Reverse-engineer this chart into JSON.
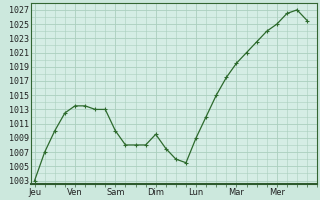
{
  "x_values": [
    0,
    0.5,
    1,
    1.5,
    2,
    2.5,
    3,
    3.5,
    4,
    4.5,
    5,
    5.5,
    6,
    6.5,
    7,
    7.5,
    8,
    8.5,
    9,
    9.5,
    10,
    10.5,
    11,
    11.5,
    12,
    12.5,
    13,
    13.5
  ],
  "y_values": [
    1003,
    1007,
    1010,
    1012.5,
    1013.5,
    1013.5,
    1013,
    1013,
    1010,
    1008,
    1008,
    1008,
    1009.5,
    1007.5,
    1006,
    1005.5,
    1009,
    1012,
    1015,
    1017.5,
    1019.5,
    1021,
    1022.5,
    1024,
    1025,
    1026.5,
    1027,
    1025.5
  ],
  "day_positions": [
    0,
    2,
    4,
    6,
    8,
    10,
    12
  ],
  "day_labels": [
    "Jeu",
    "Ven",
    "Sam",
    "Dim",
    "Lun",
    "Mar",
    "Mer"
  ],
  "y_ticks": [
    1003,
    1005,
    1007,
    1009,
    1011,
    1013,
    1015,
    1017,
    1019,
    1021,
    1023,
    1025,
    1027
  ],
  "ylim": [
    1002.5,
    1028
  ],
  "xlim": [
    -0.2,
    14
  ],
  "line_color": "#2d6a2d",
  "marker_color": "#2d6a2d",
  "bg_color": "#cce8dd",
  "plot_bg_color": "#d5ede5",
  "grid_color": "#aacfbe",
  "axis_color": "#336633",
  "tick_fontsize": 6,
  "marker_size": 2.5,
  "linewidth": 0.9
}
